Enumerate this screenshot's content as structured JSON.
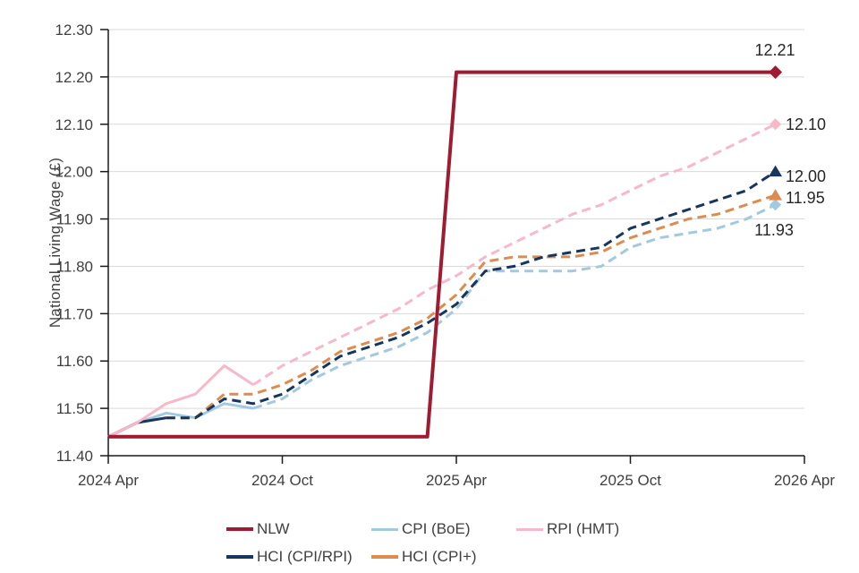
{
  "chart": {
    "y_axis": {
      "title": "National Living Wage (£)",
      "tick_labels": [
        "12.30",
        "12.20",
        "12.10",
        "12.00",
        "11.90",
        "11.80",
        "11.70",
        "11.60",
        "11.50",
        "11.40"
      ]
    },
    "x_axis": {
      "tick_labels": [
        "2024 Apr",
        "2024 Oct",
        "2025 Apr",
        "2025 Oct",
        "2026 Apr"
      ]
    },
    "colors": {
      "grid": "#d9d9d9",
      "axis": "#1a1a1a",
      "tick_text": "#3f3f3f",
      "annotation_text": "#262626"
    }
  },
  "chart_data": {
    "type": "line",
    "title": "",
    "xlabel": "",
    "ylabel": "National Living Wage (£)",
    "ylim": [
      11.4,
      12.3
    ],
    "ytick_step": 0.1,
    "grid": "horizontal",
    "legend_position": "bottom",
    "x": [
      "2024 Apr",
      "2024 May",
      "2024 Jun",
      "2024 Jul",
      "2024 Aug",
      "2024 Sep",
      "2024 Oct",
      "2024 Nov",
      "2024 Dec",
      "2025 Jan",
      "2025 Feb",
      "2025 Mar",
      "2025 Apr",
      "2025 May",
      "2025 Jun",
      "2025 Jul",
      "2025 Aug",
      "2025 Sep",
      "2025 Oct",
      "2025 Nov",
      "2025 Dec",
      "2026 Jan",
      "2026 Feb",
      "2026 Mar"
    ],
    "series": [
      {
        "name": "NLW",
        "color": "#9e1b32",
        "style": "solid",
        "solid_until_index": 23,
        "marker": "diamond",
        "end_label": "12.21",
        "values": [
          11.44,
          11.44,
          11.44,
          11.44,
          11.44,
          11.44,
          11.44,
          11.44,
          11.44,
          11.44,
          11.44,
          11.44,
          12.21,
          12.21,
          12.21,
          12.21,
          12.21,
          12.21,
          12.21,
          12.21,
          12.21,
          12.21,
          12.21,
          12.21
        ]
      },
      {
        "name": "CPI (BoE)",
        "color": "#a3c9de",
        "style": "dashed",
        "solid_until_index": 5,
        "marker": "diamond",
        "end_label": "11.93",
        "values": [
          11.44,
          11.47,
          11.49,
          11.48,
          11.51,
          11.5,
          11.52,
          11.56,
          11.59,
          11.61,
          11.63,
          11.66,
          11.71,
          11.79,
          11.79,
          11.79,
          11.79,
          11.8,
          11.84,
          11.86,
          11.87,
          11.88,
          11.9,
          11.93
        ]
      },
      {
        "name": "RPI (HMT)",
        "color": "#f7b8ca",
        "style": "dashed",
        "solid_until_index": 5,
        "marker": "diamond",
        "end_label": "12.10",
        "values": [
          11.44,
          11.47,
          11.51,
          11.53,
          11.59,
          11.55,
          11.59,
          11.62,
          11.65,
          11.68,
          11.71,
          11.75,
          11.78,
          11.82,
          11.85,
          11.88,
          11.91,
          11.93,
          11.96,
          11.99,
          12.01,
          12.04,
          12.07,
          12.1
        ]
      },
      {
        "name": "HCI (CPI/RPI)",
        "color": "#17365d",
        "style": "dashed",
        "solid_until_index": 2,
        "marker": "triangle",
        "end_label": "12.00",
        "values": [
          11.44,
          11.47,
          11.48,
          11.48,
          11.52,
          11.51,
          11.53,
          11.57,
          11.61,
          11.63,
          11.65,
          11.68,
          11.72,
          11.79,
          11.8,
          11.82,
          11.83,
          11.84,
          11.88,
          11.9,
          11.92,
          11.94,
          11.96,
          12.0
        ]
      },
      {
        "name": "HCI (CPI+)",
        "color": "#dd8b4f",
        "style": "dashed",
        "solid_until_index": 2,
        "marker": "triangle",
        "end_label": "11.95",
        "values": [
          11.44,
          11.47,
          11.48,
          11.48,
          11.53,
          11.53,
          11.55,
          11.58,
          11.62,
          11.64,
          11.66,
          11.69,
          11.74,
          11.81,
          11.82,
          11.82,
          11.82,
          11.83,
          11.86,
          11.88,
          11.9,
          11.91,
          11.93,
          11.95
        ]
      }
    ]
  }
}
